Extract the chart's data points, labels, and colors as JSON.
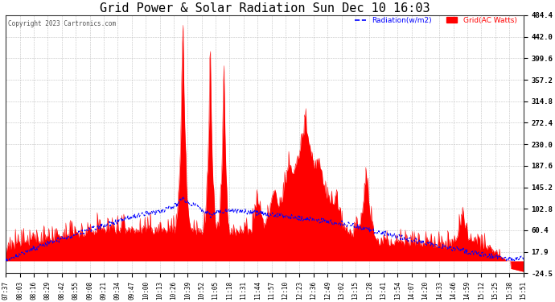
{
  "title": "Grid Power & Solar Radiation Sun Dec 10 16:03",
  "copyright": "Copyright 2023 Cartronics.com",
  "legend_radiation": "Radiation(w/m2)",
  "legend_grid": "Grid(AC Watts)",
  "ymin": -24.5,
  "ymax": 484.4,
  "yticks": [
    484.4,
    442.0,
    399.6,
    357.2,
    314.8,
    272.4,
    230.0,
    187.6,
    145.2,
    102.8,
    60.4,
    17.9,
    -24.5
  ],
  "xtick_labels": [
    "07:37",
    "08:03",
    "08:16",
    "08:29",
    "08:42",
    "08:55",
    "09:08",
    "09:21",
    "09:34",
    "09:47",
    "10:00",
    "10:13",
    "10:26",
    "10:39",
    "10:52",
    "11:05",
    "11:18",
    "11:31",
    "11:44",
    "11:57",
    "12:10",
    "12:23",
    "12:36",
    "12:49",
    "13:02",
    "13:15",
    "13:28",
    "13:41",
    "13:54",
    "14:07",
    "14:20",
    "14:33",
    "14:46",
    "14:59",
    "15:12",
    "15:25",
    "15:38",
    "15:51"
  ],
  "grid_color": "#FF0000",
  "radiation_color": "#0000FF",
  "background_color": "#FFFFFF",
  "plot_background": "#FFFFFF",
  "title_fontsize": 11,
  "copyright_color": "#555555"
}
